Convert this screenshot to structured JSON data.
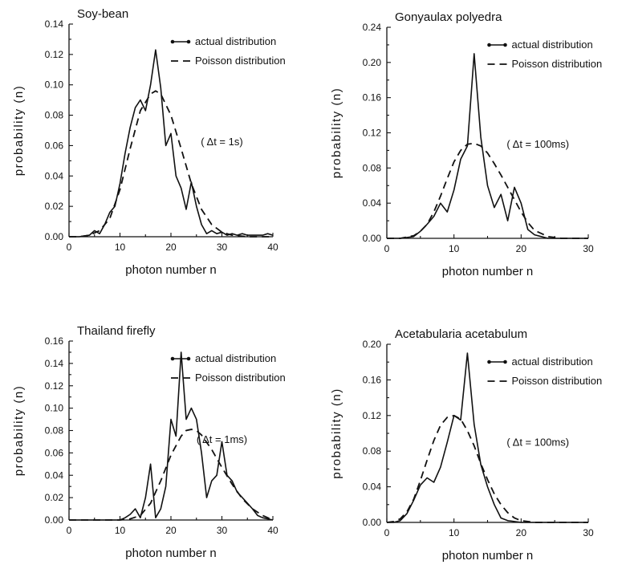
{
  "chart_data": [
    {
      "type": "line",
      "title": "Soy-bean",
      "xlabel": "photon number n",
      "ylabel": "probability (n)",
      "xlim": [
        0,
        40
      ],
      "ylim": [
        0,
        0.14
      ],
      "xticks": [
        0,
        10,
        20,
        30,
        40
      ],
      "yticks": [
        "0.00",
        "0.02",
        "0.04",
        "0.06",
        "0.08",
        "0.10",
        "0.12",
        "0.14"
      ],
      "legend": [
        "actual distribution",
        "Poisson distribution"
      ],
      "annotation": "( Δt = 1s)",
      "series": [
        {
          "name": "actual distribution",
          "x": [
            0,
            2,
            4,
            5,
            6,
            7,
            8,
            9,
            10,
            11,
            12,
            13,
            14,
            15,
            16,
            17,
            18,
            19,
            20,
            21,
            22,
            23,
            24,
            25,
            26,
            27,
            28,
            29,
            30,
            31,
            32,
            33,
            34,
            35,
            36,
            37,
            38,
            39,
            40
          ],
          "values": [
            0,
            0,
            0.001,
            0.004,
            0.002,
            0.008,
            0.016,
            0.02,
            0.035,
            0.055,
            0.072,
            0.085,
            0.09,
            0.083,
            0.1,
            0.123,
            0.098,
            0.06,
            0.068,
            0.04,
            0.032,
            0.018,
            0.036,
            0.02,
            0.008,
            0.002,
            0.004,
            0.002,
            0.003,
            0.001,
            0.002,
            0.001,
            0.002,
            0.001,
            0.001,
            0.001,
            0.001,
            0.002,
            0.001
          ]
        },
        {
          "name": "Poisson distribution",
          "x": [
            0,
            2,
            4,
            6,
            8,
            10,
            12,
            14,
            16,
            17,
            18,
            20,
            22,
            24,
            26,
            28,
            30,
            32,
            35,
            40
          ],
          "values": [
            0,
            0,
            0.001,
            0.004,
            0.012,
            0.031,
            0.058,
            0.083,
            0.094,
            0.096,
            0.094,
            0.08,
            0.058,
            0.035,
            0.018,
            0.008,
            0.003,
            0.001,
            0,
            0
          ]
        }
      ]
    },
    {
      "type": "line",
      "title": "Gonyaulax polyedra",
      "xlabel": "photon number n",
      "ylabel": "probability (n)",
      "xlim": [
        0,
        30
      ],
      "ylim": [
        0,
        0.24
      ],
      "xticks": [
        0,
        10,
        20,
        30
      ],
      "yticks": [
        "0.00",
        "0.04",
        "0.08",
        "0.12",
        "0.16",
        "0.20",
        "0.24"
      ],
      "legend": [
        "actual distribution",
        "Poisson distribution"
      ],
      "annotation": "( Δt = 100ms)",
      "series": [
        {
          "name": "actual distribution",
          "x": [
            0,
            2,
            4,
            5,
            6,
            7,
            8,
            9,
            10,
            11,
            12,
            13,
            14,
            15,
            16,
            17,
            18,
            19,
            20,
            21,
            22,
            23,
            24,
            30
          ],
          "values": [
            0,
            0,
            0.002,
            0.008,
            0.016,
            0.025,
            0.04,
            0.03,
            0.055,
            0.09,
            0.105,
            0.21,
            0.115,
            0.06,
            0.035,
            0.05,
            0.02,
            0.058,
            0.04,
            0.01,
            0.004,
            0.002,
            0,
            0
          ]
        },
        {
          "name": "Poisson distribution",
          "x": [
            0,
            2,
            4,
            5,
            6,
            7,
            8,
            9,
            10,
            11,
            12,
            13,
            14,
            15,
            16,
            17,
            18,
            19,
            20,
            21,
            22,
            24,
            26,
            30
          ],
          "values": [
            0,
            0,
            0.003,
            0.008,
            0.016,
            0.03,
            0.048,
            0.068,
            0.087,
            0.1,
            0.107,
            0.108,
            0.105,
            0.097,
            0.085,
            0.072,
            0.058,
            0.044,
            0.03,
            0.018,
            0.009,
            0.002,
            0,
            0
          ]
        }
      ]
    },
    {
      "type": "line",
      "title": "Thailand firefly",
      "xlabel": "photon number n",
      "ylabel": "probability (n)",
      "xlim": [
        0,
        40
      ],
      "ylim": [
        0,
        0.16
      ],
      "xticks": [
        0,
        10,
        20,
        30,
        40
      ],
      "yticks": [
        "0.00",
        "0.02",
        "0.04",
        "0.06",
        "0.08",
        "0.10",
        "0.12",
        "0.14",
        "0.16"
      ],
      "legend": [
        "actual distribution",
        "Poisson distribution"
      ],
      "annotation": "( Δt = 1ms)",
      "series": [
        {
          "name": "actual distribution",
          "x": [
            0,
            5,
            10,
            11,
            12,
            13,
            14,
            15,
            16,
            17,
            18,
            19,
            20,
            21,
            22,
            23,
            24,
            25,
            26,
            27,
            28,
            29,
            30,
            31,
            32,
            33,
            34,
            35,
            36,
            37,
            38,
            40
          ],
          "values": [
            0,
            0,
            0,
            0.002,
            0.005,
            0.01,
            0.002,
            0.02,
            0.05,
            0.002,
            0.01,
            0.03,
            0.09,
            0.075,
            0.15,
            0.09,
            0.1,
            0.09,
            0.06,
            0.02,
            0.035,
            0.04,
            0.07,
            0.04,
            0.035,
            0.025,
            0.02,
            0.015,
            0.01,
            0.004,
            0.002,
            0
          ]
        },
        {
          "name": "Poisson distribution",
          "x": [
            0,
            10,
            12,
            14,
            16,
            18,
            20,
            22,
            23,
            24,
            25,
            26,
            28,
            30,
            32,
            34,
            36,
            38,
            40
          ],
          "values": [
            0,
            0,
            0.001,
            0.004,
            0.015,
            0.035,
            0.058,
            0.075,
            0.08,
            0.081,
            0.08,
            0.076,
            0.063,
            0.047,
            0.032,
            0.019,
            0.01,
            0.004,
            0
          ]
        }
      ]
    },
    {
      "type": "line",
      "title": "Acetabularia acetabulum",
      "xlabel": "photon number n",
      "ylabel": "probability (n)",
      "xlim": [
        0,
        30
      ],
      "ylim": [
        0,
        0.2
      ],
      "xticks": [
        0,
        10,
        20,
        30
      ],
      "yticks": [
        "0.00",
        "0.04",
        "0.08",
        "0.12",
        "0.16",
        "0.20"
      ],
      "legend": [
        "actual distribution",
        "Poisson distribution"
      ],
      "annotation": "( Δt = 100ms)",
      "series": [
        {
          "name": "actual distribution",
          "x": [
            0,
            1,
            2,
            3,
            4,
            5,
            6,
            7,
            8,
            9,
            10,
            11,
            12,
            13,
            14,
            15,
            16,
            17,
            18,
            20,
            30
          ],
          "values": [
            0,
            0,
            0.002,
            0.01,
            0.025,
            0.042,
            0.05,
            0.045,
            0.062,
            0.09,
            0.12,
            0.115,
            0.19,
            0.11,
            0.065,
            0.04,
            0.02,
            0.005,
            0.002,
            0,
            0
          ]
        },
        {
          "name": "Poisson distribution",
          "x": [
            0,
            1,
            2,
            3,
            4,
            5,
            6,
            7,
            8,
            9,
            10,
            11,
            12,
            13,
            14,
            15,
            16,
            17,
            18,
            19,
            20,
            22,
            30
          ],
          "values": [
            0,
            0.001,
            0.004,
            0.012,
            0.026,
            0.047,
            0.07,
            0.092,
            0.109,
            0.118,
            0.12,
            0.116,
            0.103,
            0.086,
            0.066,
            0.048,
            0.032,
            0.02,
            0.011,
            0.005,
            0.002,
            0,
            0
          ]
        }
      ]
    }
  ]
}
